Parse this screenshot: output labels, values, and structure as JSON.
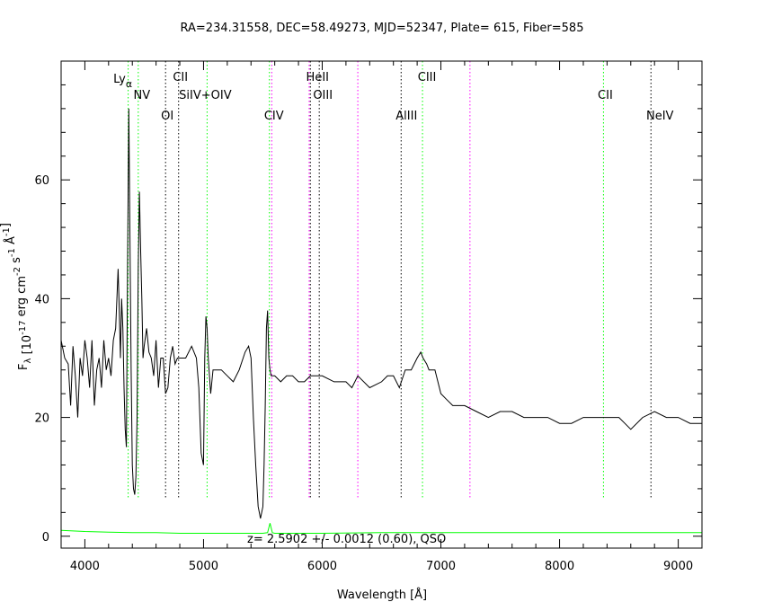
{
  "chart_data": {
    "type": "line",
    "title": "RA=234.31558, DEC=58.49273, MJD=52347, Plate= 615, Fiber=585",
    "xlabel": "Wavelength [Å]",
    "ylabel": "F_λ [10^-17 erg cm^-2 s^-1 Å^-1]",
    "xlim": [
      3800,
      9200
    ],
    "ylim": [
      -2,
      80
    ],
    "xticks": [
      4000,
      5000,
      6000,
      7000,
      8000,
      9000
    ],
    "yticks": [
      0,
      20,
      40,
      60
    ],
    "annotation": "z=  2.5902 +/- 0.0012 (0.60), QSO",
    "series": [
      {
        "color": "#000000",
        "x": [
          3800,
          3830,
          3860,
          3880,
          3900,
          3920,
          3940,
          3960,
          3980,
          4000,
          4020,
          4040,
          4060,
          4080,
          4100,
          4120,
          4140,
          4160,
          4180,
          4200,
          4220,
          4240,
          4260,
          4280,
          4290,
          4300,
          4310,
          4320,
          4330,
          4340,
          4350,
          4360,
          4370,
          4380,
          4390,
          4400,
          4410,
          4420,
          4430,
          4440,
          4450,
          4460,
          4470,
          4480,
          4490,
          4500,
          4520,
          4540,
          4560,
          4580,
          4600,
          4620,
          4640,
          4660,
          4680,
          4700,
          4720,
          4740,
          4760,
          4780,
          4800,
          4850,
          4900,
          4940,
          4960,
          4980,
          5000,
          5010,
          5020,
          5030,
          5040,
          5060,
          5080,
          5100,
          5150,
          5200,
          5250,
          5300,
          5350,
          5380,
          5400,
          5420,
          5440,
          5460,
          5480,
          5500,
          5510,
          5520,
          5530,
          5540,
          5550,
          5560,
          5570,
          5580,
          5600,
          5650,
          5700,
          5750,
          5800,
          5850,
          5900,
          5950,
          6000,
          6100,
          6200,
          6250,
          6300,
          6400,
          6500,
          6550,
          6600,
          6650,
          6700,
          6750,
          6800,
          6830,
          6850,
          6880,
          6900,
          6950,
          7000,
          7050,
          7100,
          7200,
          7300,
          7400,
          7500,
          7600,
          7700,
          7800,
          7900,
          8000,
          8100,
          8200,
          8300,
          8400,
          8500,
          8550,
          8600,
          8700,
          8800,
          8900,
          9000,
          9100,
          9200
        ],
        "y": [
          33,
          30,
          29,
          22,
          32,
          27,
          20,
          30,
          27,
          33,
          30,
          25,
          33,
          22,
          28,
          30,
          25,
          33,
          28,
          30,
          27,
          33,
          35,
          45,
          38,
          30,
          40,
          35,
          25,
          18,
          15,
          45,
          72,
          50,
          28,
          12,
          8,
          7,
          10,
          20,
          45,
          58,
          48,
          40,
          30,
          32,
          35,
          31,
          30,
          27,
          33,
          25,
          30,
          30,
          24,
          25,
          30,
          32,
          29,
          30,
          30,
          30,
          32,
          30,
          25,
          14,
          12,
          30,
          37,
          35,
          30,
          24,
          28,
          28,
          28,
          27,
          26,
          28,
          31,
          32,
          30,
          20,
          12,
          5,
          3,
          5,
          12,
          22,
          35,
          38,
          30,
          28,
          27,
          27,
          27,
          26,
          27,
          27,
          26,
          26,
          27,
          27,
          27,
          26,
          26,
          25,
          27,
          25,
          26,
          27,
          27,
          25,
          28,
          28,
          30,
          31,
          30,
          29,
          28,
          28,
          24,
          23,
          22,
          22,
          21,
          20,
          21,
          21,
          20,
          20,
          20,
          19,
          19,
          20,
          20,
          20,
          20,
          19,
          18,
          20,
          21,
          20,
          20,
          19,
          19
        ]
      },
      {
        "color": "#00ff00",
        "x": [
          3800,
          4000,
          4200,
          4400,
          4600,
          4800,
          5000,
          5200,
          5400,
          5500,
          5540,
          5560,
          5580,
          5600,
          5700,
          6000,
          6500,
          7000,
          7500,
          8000,
          8500,
          9000,
          9200
        ],
        "y": [
          1.0,
          0.8,
          0.7,
          0.6,
          0.6,
          0.5,
          0.5,
          0.5,
          0.5,
          0.5,
          0.6,
          2.2,
          0.6,
          0.5,
          0.5,
          0.5,
          0.6,
          0.6,
          0.6,
          0.6,
          0.6,
          0.6,
          0.6
        ]
      }
    ],
    "lines": [
      {
        "wave": 4365,
        "color": "#00ff00",
        "label": "Ly_α"
      },
      {
        "wave": 4450,
        "color": "#00ff00",
        "label": "NV"
      },
      {
        "wave": 4680,
        "color": "#000000",
        "label": "OI"
      },
      {
        "wave": 4790,
        "color": "#000000",
        "label": "CII"
      },
      {
        "wave": 5030,
        "color": "#00ff00",
        "label": "SiIV+OIV"
      },
      {
        "wave": 5555,
        "color": "#00ff00",
        "label": "CIV"
      },
      {
        "wave": 5575,
        "color": "#ff00ff",
        "label": ""
      },
      {
        "wave": 5890,
        "color": "#ff00ff",
        "label": ""
      },
      {
        "wave": 5900,
        "color": "#000000",
        "label": "HeII"
      },
      {
        "wave": 5975,
        "color": "#000000",
        "label": "OIII"
      },
      {
        "wave": 6300,
        "color": "#ff00ff",
        "label": ""
      },
      {
        "wave": 6665,
        "color": "#000000",
        "label": "AlIII"
      },
      {
        "wave": 6845,
        "color": "#00ff00",
        "label": "CIII"
      },
      {
        "wave": 7245,
        "color": "#ff00ff",
        "label": ""
      },
      {
        "wave": 8370,
        "color": "#00ff00",
        "label": "CII"
      },
      {
        "wave": 8770,
        "color": "#000000",
        "label": "NeIV"
      }
    ]
  }
}
